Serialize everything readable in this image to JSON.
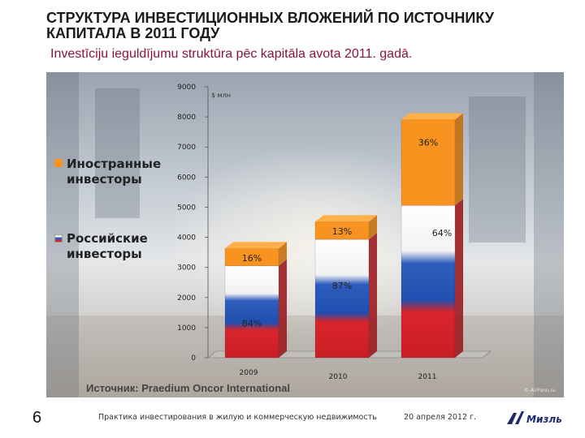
{
  "title": "СТРУКТУРА ИНВЕСТИЦИОННЫХ ВЛОЖЕНИЙ ПО ИСТОЧНИКУ КАПИТАЛА В 2011 ГОДУ",
  "subtitle": "Investīciju ieguldījumu struktūra pēc kapitāla avota 2011. gadā.",
  "chart_data": {
    "type": "bar",
    "stacked": true,
    "title": "",
    "unit_label": "$ млн",
    "categories": [
      "2009",
      "2010",
      "2011"
    ],
    "ylim": [
      0,
      9000
    ],
    "yticks": [
      "0",
      "1000",
      "2000",
      "3000",
      "4000",
      "5000",
      "6000",
      "7000",
      "8000",
      "9000"
    ],
    "series": [
      {
        "name": "Российские инвесторы",
        "values": [
          3050,
          3930,
          5060
        ],
        "labels": [
          "84%",
          "87%",
          "64%"
        ],
        "color": "#d9252b"
      },
      {
        "name": "Иностранные инвесторы",
        "values": [
          580,
          590,
          2850
        ],
        "labels": [
          "16%",
          "13%",
          "36%"
        ],
        "color": "#f7931e"
      }
    ],
    "legend_position": "left",
    "grid": false
  },
  "legend": {
    "foreign_line1": "Иностранные",
    "foreign_line2": "инвесторы",
    "russian_line1": "Российские",
    "russian_line2": "инвесторы",
    "foreign_color": "#f7931e",
    "russian_color": "#d9252b"
  },
  "source": "Источник: Praedium Oncor International",
  "footer": {
    "page_number": "6",
    "text": "Практика инвестирования в жилую и коммерческую недвижимость",
    "date": "20 апреля 2012 г."
  },
  "logo_text": "Мизль",
  "watermark": "© AirPano.ru"
}
